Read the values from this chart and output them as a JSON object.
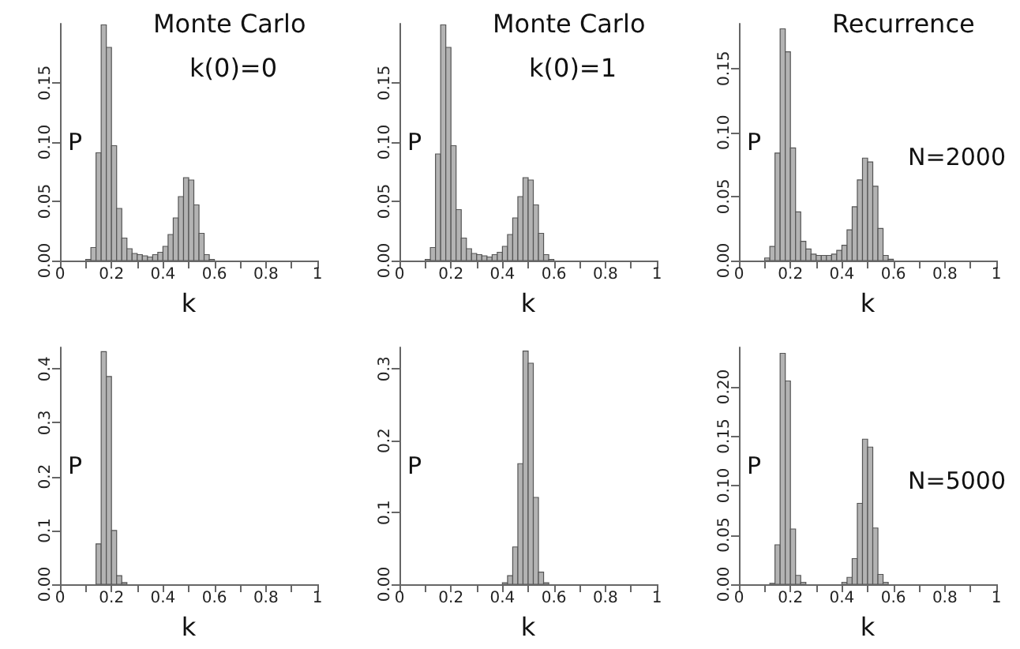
{
  "chart_data": [
    {
      "type": "histogram",
      "title": "Monte Carlo",
      "subtitle": "k(0)=0",
      "xlabel": "k",
      "ylabel": "P",
      "color": "#b3b3b3",
      "grid": false,
      "bins": [
        0,
        0.02,
        0.04,
        0.06,
        0.08,
        0.1,
        0.12,
        0.14,
        0.16,
        0.18,
        0.2,
        0.22,
        0.24,
        0.26,
        0.28,
        0.3,
        0.32,
        0.34,
        0.36,
        0.38,
        0.4,
        0.42,
        0.44,
        0.46,
        0.48,
        0.5,
        0.52,
        0.54,
        0.56,
        0.58,
        0.6,
        0.62,
        0.64,
        0.66,
        0.68,
        0.7,
        0.72,
        0.74,
        0.76,
        0.78,
        0.8,
        0.82,
        0.84,
        0.86,
        0.88,
        0.9,
        0.92,
        0.94,
        0.96,
        0.98,
        1
      ],
      "values": [
        0,
        0,
        0,
        0,
        0,
        0.001,
        0.011,
        0.091,
        0.199,
        0.18,
        0.097,
        0.044,
        0.019,
        0.01,
        0.006,
        0.005,
        0.004,
        0.003,
        0.005,
        0.007,
        0.012,
        0.022,
        0.036,
        0.054,
        0.07,
        0.068,
        0.047,
        0.023,
        0.005,
        0.001,
        0,
        0,
        0,
        0,
        0,
        0,
        0,
        0,
        0,
        0,
        0,
        0,
        0,
        0,
        0,
        0,
        0,
        0,
        0,
        0
      ],
      "xlim": [
        0,
        1
      ],
      "xticks": [
        {
          "value": 0,
          "label": "0"
        },
        {
          "value": 0.1,
          "label": null
        },
        0.2,
        {
          "value": 0.3,
          "label": null
        },
        0.4,
        {
          "value": 0.5,
          "label": null
        },
        0.6,
        {
          "value": 0.7,
          "label": null
        },
        0.8,
        {
          "value": 0.9,
          "label": null
        },
        1
      ],
      "ylim": [
        0,
        0.2
      ],
      "yticks": [
        {
          "value": 0,
          "label": "0.00"
        },
        {
          "value": 0.05,
          "label": "0.05"
        },
        {
          "value": 0.1,
          "label": "0.10"
        },
        {
          "value": 0.15,
          "label": "0.15"
        }
      ]
    },
    {
      "type": "histogram",
      "title": "Monte Carlo",
      "subtitle": "k(0)=1",
      "xlabel": "k",
      "ylabel": "P",
      "color": "#b3b3b3",
      "grid": false,
      "bins": [
        0,
        0.02,
        0.04,
        0.06,
        0.08,
        0.1,
        0.12,
        0.14,
        0.16,
        0.18,
        0.2,
        0.22,
        0.24,
        0.26,
        0.28,
        0.3,
        0.32,
        0.34,
        0.36,
        0.38,
        0.4,
        0.42,
        0.44,
        0.46,
        0.48,
        0.5,
        0.52,
        0.54,
        0.56,
        0.58,
        0.6,
        0.62,
        0.64,
        0.66,
        0.68,
        0.7,
        0.72,
        0.74,
        0.76,
        0.78,
        0.8,
        0.82,
        0.84,
        0.86,
        0.88,
        0.9,
        0.92,
        0.94,
        0.96,
        0.98,
        1
      ],
      "values": [
        0,
        0,
        0,
        0,
        0,
        0.001,
        0.011,
        0.09,
        0.199,
        0.18,
        0.097,
        0.043,
        0.019,
        0.01,
        0.006,
        0.005,
        0.004,
        0.003,
        0.005,
        0.007,
        0.012,
        0.022,
        0.036,
        0.054,
        0.07,
        0.068,
        0.047,
        0.023,
        0.005,
        0.001,
        0,
        0,
        0,
        0,
        0,
        0,
        0,
        0,
        0,
        0,
        0,
        0,
        0,
        0,
        0,
        0,
        0,
        0,
        0,
        0
      ],
      "xlim": [
        0,
        1
      ],
      "xticks": [
        {
          "value": 0,
          "label": "0"
        },
        {
          "value": 0.1,
          "label": null
        },
        0.2,
        {
          "value": 0.3,
          "label": null
        },
        0.4,
        {
          "value": 0.5,
          "label": null
        },
        0.6,
        {
          "value": 0.7,
          "label": null
        },
        0.8,
        {
          "value": 0.9,
          "label": null
        },
        1
      ],
      "ylim": [
        0,
        0.2
      ],
      "yticks": [
        {
          "value": 0,
          "label": "0.00"
        },
        {
          "value": 0.05,
          "label": "0.05"
        },
        {
          "value": 0.1,
          "label": "0.10"
        },
        {
          "value": 0.15,
          "label": "0.15"
        }
      ]
    },
    {
      "type": "histogram",
      "title": "Recurrence",
      "annotations": [
        "N=2000"
      ],
      "xlabel": "k",
      "ylabel": "P",
      "color": "#b3b3b3",
      "grid": false,
      "bins": [
        0,
        0.02,
        0.04,
        0.06,
        0.08,
        0.1,
        0.12,
        0.14,
        0.16,
        0.18,
        0.2,
        0.22,
        0.24,
        0.26,
        0.28,
        0.3,
        0.32,
        0.34,
        0.36,
        0.38,
        0.4,
        0.42,
        0.44,
        0.46,
        0.48,
        0.5,
        0.52,
        0.54,
        0.56,
        0.58,
        0.6,
        0.62,
        0.64,
        0.66,
        0.68,
        0.7,
        0.72,
        0.74,
        0.76,
        0.78,
        0.8,
        0.82,
        0.84,
        0.86,
        0.88,
        0.9,
        0.92,
        0.94,
        0.96,
        0.98,
        1
      ],
      "values": [
        0,
        0,
        0,
        0,
        0,
        0.002,
        0.011,
        0.084,
        0.181,
        0.163,
        0.088,
        0.038,
        0.015,
        0.009,
        0.005,
        0.004,
        0.004,
        0.004,
        0.005,
        0.008,
        0.012,
        0.024,
        0.042,
        0.063,
        0.08,
        0.077,
        0.058,
        0.025,
        0.004,
        0.001,
        0,
        0,
        0,
        0,
        0,
        0,
        0,
        0,
        0,
        0,
        0,
        0,
        0,
        0,
        0,
        0,
        0,
        0,
        0,
        0
      ],
      "xlim": [
        0,
        1
      ],
      "xticks": [
        {
          "value": 0,
          "label": "0"
        },
        {
          "value": 0.1,
          "label": null
        },
        0.2,
        {
          "value": 0.3,
          "label": null
        },
        0.4,
        {
          "value": 0.5,
          "label": null
        },
        0.6,
        {
          "value": 0.7,
          "label": null
        },
        0.8,
        {
          "value": 0.9,
          "label": null
        },
        1
      ],
      "ylim": [
        0,
        0.185
      ],
      "yticks": [
        {
          "value": 0,
          "label": "0.00"
        },
        {
          "value": 0.05,
          "label": "0.05"
        },
        {
          "value": 0.1,
          "label": "0.10"
        },
        {
          "value": 0.15,
          "label": "0.15"
        }
      ]
    },
    {
      "type": "histogram",
      "xlabel": "k",
      "ylabel": "P",
      "color": "#b3b3b3",
      "grid": false,
      "bins": [
        0,
        0.02,
        0.04,
        0.06,
        0.08,
        0.1,
        0.12,
        0.14,
        0.16,
        0.18,
        0.2,
        0.22,
        0.24,
        0.26,
        0.28,
        0.3,
        0.32,
        0.34,
        0.36,
        0.38,
        0.4,
        0.42,
        0.44,
        0.46,
        0.48,
        0.5,
        0.52,
        0.54,
        0.56,
        0.58,
        0.6,
        0.62,
        0.64,
        0.66,
        0.68,
        0.7,
        0.72,
        0.74,
        0.76,
        0.78,
        0.8,
        0.82,
        0.84,
        0.86,
        0.88,
        0.9,
        0.92,
        0.94,
        0.96,
        0.98,
        1
      ],
      "values": [
        0,
        0,
        0,
        0,
        0,
        0,
        null,
        0.075,
        0.432,
        0.386,
        0.1,
        0.016,
        0.003,
        0,
        0,
        0,
        0,
        0,
        0,
        0,
        0,
        0,
        0,
        0,
        0,
        0,
        0,
        0,
        0,
        0,
        0,
        0,
        0,
        0,
        0,
        0,
        0,
        0,
        0,
        0,
        0,
        0,
        0,
        0,
        0,
        0,
        0,
        0,
        0,
        0
      ],
      "xlim": [
        0,
        1
      ],
      "xticks": [
        {
          "value": 0,
          "label": "0"
        },
        {
          "value": 0.1,
          "label": null
        },
        0.2,
        {
          "value": 0.3,
          "label": null
        },
        0.4,
        {
          "value": 0.5,
          "label": null
        },
        0.6,
        {
          "value": 0.7,
          "label": null
        },
        0.8,
        {
          "value": 0.9,
          "label": null
        },
        1
      ],
      "ylim": [
        0,
        0.44
      ],
      "yticks": [
        {
          "value": 0,
          "label": "0.00"
        },
        0.1,
        0.2,
        0.3,
        0.4
      ]
    },
    {
      "type": "histogram",
      "xlabel": "k",
      "ylabel": "P",
      "color": "#b3b3b3",
      "grid": false,
      "bins": [
        0,
        0.02,
        0.04,
        0.06,
        0.08,
        0.1,
        0.12,
        0.14,
        0.16,
        0.18,
        0.2,
        0.22,
        0.24,
        0.26,
        0.28,
        0.3,
        0.32,
        0.34,
        0.36,
        0.38,
        0.4,
        0.42,
        0.44,
        0.46,
        0.48,
        0.5,
        0.52,
        0.54,
        0.56,
        0.58,
        0.6,
        0.62,
        0.64,
        0.66,
        0.68,
        0.7,
        0.72,
        0.74,
        0.76,
        0.78,
        0.8,
        0.82,
        0.84,
        0.86,
        0.88,
        0.9,
        0.92,
        0.94,
        0.96,
        0.98,
        1
      ],
      "values": [
        0,
        0,
        0,
        0,
        0,
        0,
        0,
        0,
        0,
        0,
        0,
        0,
        0,
        0,
        0,
        0,
        0,
        0,
        0,
        0,
        0.002,
        0.012,
        0.052,
        0.168,
        0.325,
        0.308,
        0.121,
        0.017,
        0.002,
        0,
        0,
        0,
        0,
        0,
        0,
        0,
        0,
        0,
        0,
        0,
        0,
        0,
        0,
        0,
        0,
        0,
        0,
        0,
        0,
        0
      ],
      "xlim": [
        0,
        1
      ],
      "xticks": [
        {
          "value": 0,
          "label": "0"
        },
        {
          "value": 0.1,
          "label": null
        },
        0.2,
        {
          "value": 0.3,
          "label": null
        },
        0.4,
        {
          "value": 0.5,
          "label": null
        },
        0.6,
        {
          "value": 0.7,
          "label": null
        },
        0.8,
        {
          "value": 0.9,
          "label": null
        },
        1
      ],
      "ylim": [
        0,
        0.33
      ],
      "yticks": [
        {
          "value": 0,
          "label": "0.00"
        },
        0.1,
        0.2,
        0.3
      ]
    },
    {
      "type": "histogram",
      "annotations": [
        "N=5000"
      ],
      "xlabel": "k",
      "ylabel": "P",
      "color": "#b3b3b3",
      "grid": false,
      "bins": [
        0,
        0.02,
        0.04,
        0.06,
        0.08,
        0.1,
        0.12,
        0.14,
        0.16,
        0.18,
        0.2,
        0.22,
        0.24,
        0.26,
        0.28,
        0.3,
        0.32,
        0.34,
        0.36,
        0.38,
        0.4,
        0.42,
        0.44,
        0.46,
        0.48,
        0.5,
        0.52,
        0.54,
        0.56,
        0.58,
        0.6,
        0.62,
        0.64,
        0.66,
        0.68,
        0.7,
        0.72,
        0.74,
        0.76,
        0.78,
        0.8,
        0.82,
        0.84,
        0.86,
        0.88,
        0.9,
        0.92,
        0.94,
        0.96,
        0.98,
        1
      ],
      "values": [
        0,
        0,
        0,
        0,
        0,
        0,
        0.001,
        0.04,
        0.234,
        0.206,
        0.056,
        0.009,
        0.002,
        0,
        0,
        0,
        0,
        0,
        0,
        0,
        0.002,
        0.007,
        0.026,
        0.082,
        0.147,
        0.139,
        0.057,
        0.01,
        0.002,
        0,
        0,
        0,
        0,
        0,
        0,
        0,
        0,
        0,
        0,
        0,
        0,
        0,
        0,
        0,
        0,
        0,
        0,
        0,
        0,
        0
      ],
      "xlim": [
        0,
        1
      ],
      "xticks": [
        {
          "value": 0,
          "label": "0"
        },
        {
          "value": 0.1,
          "label": null
        },
        0.2,
        {
          "value": 0.3,
          "label": null
        },
        0.4,
        {
          "value": 0.5,
          "label": null
        },
        0.6,
        {
          "value": 0.7,
          "label": null
        },
        0.8,
        {
          "value": 0.9,
          "label": null
        },
        1
      ],
      "ylim": [
        0,
        0.24
      ],
      "yticks": [
        {
          "value": 0,
          "label": "0.00"
        },
        {
          "value": 0.05,
          "label": "0.05"
        },
        {
          "value": 0.1,
          "label": "0.10"
        },
        {
          "value": 0.15,
          "label": "0.15"
        },
        {
          "value": 0.2,
          "label": "0.20"
        }
      ]
    }
  ]
}
